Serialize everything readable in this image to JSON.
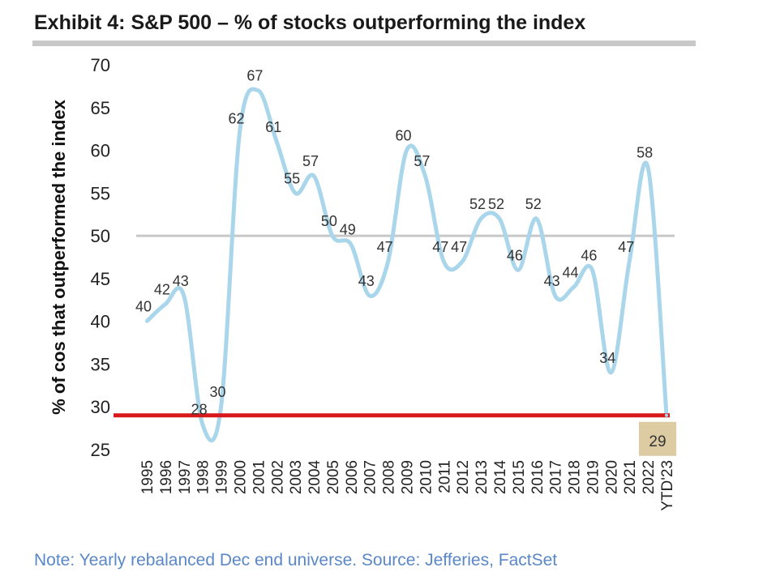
{
  "title": "Exhibit 4: S&P 500 – % of stocks outperforming the index",
  "note": "Note: Yearly rebalanced Dec end universe. Source: Jefferies, FactSet",
  "chart_data": {
    "type": "line",
    "title": "Exhibit 4: S&P 500 – % of stocks outperforming the index",
    "xlabel": "",
    "ylabel": "% of cos that outperformed the index",
    "ylim": [
      25,
      70
    ],
    "yticks": [
      70,
      65,
      60,
      55,
      50,
      45,
      40,
      35,
      30,
      25
    ],
    "categories": [
      "1995",
      "1996",
      "1997",
      "1998",
      "1999",
      "2000",
      "2001",
      "2002",
      "2003",
      "2004",
      "2005",
      "2006",
      "2007",
      "2008",
      "2009",
      "2010",
      "2011",
      "2012",
      "2013",
      "2014",
      "2015",
      "2016",
      "2017",
      "2018",
      "2019",
      "2020",
      "2021",
      "2022",
      "YTD'23"
    ],
    "values": [
      40,
      42,
      43,
      28,
      30,
      62,
      67,
      61,
      55,
      57,
      50,
      49,
      43,
      47,
      60,
      57,
      47,
      47,
      52,
      52,
      46,
      52,
      43,
      44,
      46,
      34,
      47,
      58,
      29
    ],
    "reference_lines": [
      {
        "value": 50,
        "color": "#c8c8c8"
      },
      {
        "value": 29,
        "color": "#d7191c"
      }
    ],
    "highlight_label": {
      "category": "YTD'23",
      "value": 29,
      "background": "#dccba3"
    },
    "line_color": "#a9d6ea",
    "grid": false,
    "legend": "none"
  }
}
